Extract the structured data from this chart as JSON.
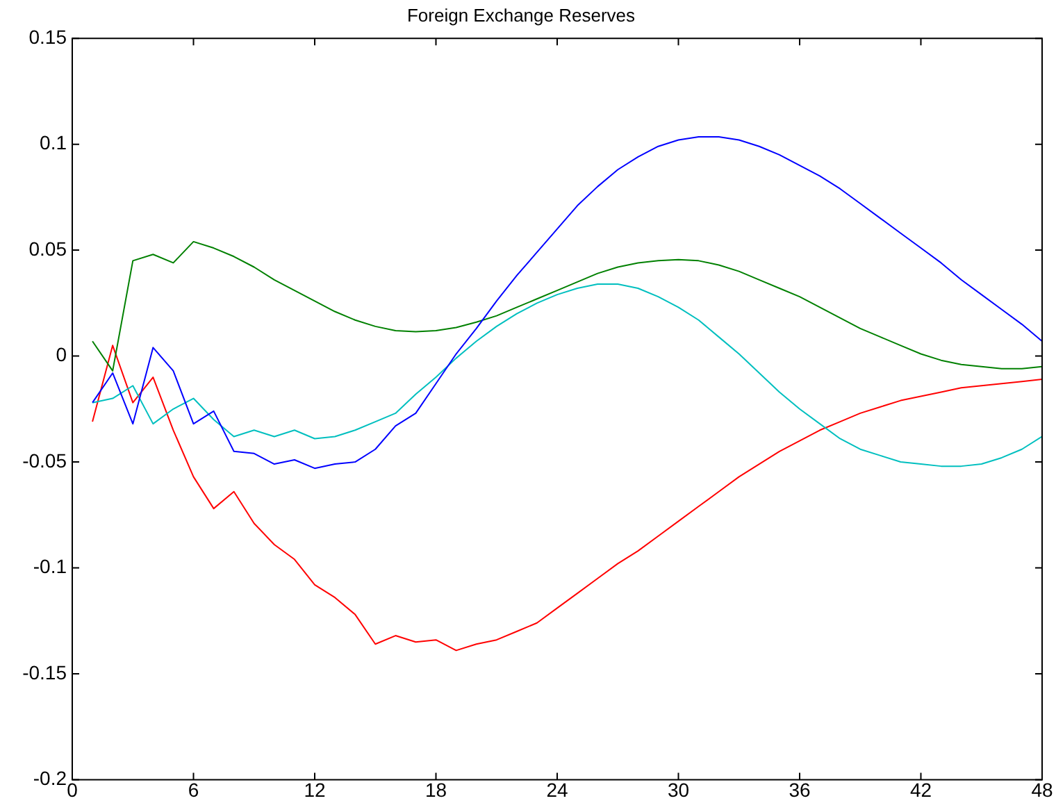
{
  "chart_data": {
    "type": "line",
    "title": "Foreign Exchange Reserves",
    "x": [
      1,
      2,
      3,
      4,
      5,
      6,
      7,
      8,
      9,
      10,
      11,
      12,
      13,
      14,
      15,
      16,
      17,
      18,
      19,
      20,
      21,
      22,
      23,
      24,
      25,
      26,
      27,
      28,
      29,
      30,
      31,
      32,
      33,
      34,
      35,
      36,
      37,
      38,
      39,
      40,
      41,
      42,
      43,
      44,
      45,
      46,
      47,
      48
    ],
    "series": [
      {
        "color": "#0000ff",
        "values": [
          -0.022,
          -0.008,
          -0.032,
          0.004,
          -0.007,
          -0.032,
          -0.026,
          -0.045,
          -0.046,
          -0.051,
          -0.049,
          -0.053,
          -0.051,
          -0.05,
          -0.044,
          -0.033,
          -0.027,
          -0.013,
          0.001,
          0.013,
          0.026,
          0.038,
          0.049,
          0.06,
          0.071,
          0.08,
          0.088,
          0.094,
          0.099,
          0.102,
          0.1035,
          0.1035,
          0.102,
          0.099,
          0.095,
          0.09,
          0.085,
          0.079,
          0.072,
          0.065,
          0.058,
          0.051,
          0.044,
          0.036,
          0.029,
          0.022,
          0.015,
          0.007
        ]
      },
      {
        "color": "#008000",
        "values": [
          0.007,
          -0.007,
          0.045,
          0.048,
          0.044,
          0.054,
          0.051,
          0.047,
          0.042,
          0.036,
          0.031,
          0.026,
          0.021,
          0.017,
          0.014,
          0.012,
          0.0115,
          0.012,
          0.0135,
          0.016,
          0.019,
          0.023,
          0.027,
          0.031,
          0.035,
          0.039,
          0.042,
          0.044,
          0.045,
          0.0455,
          0.045,
          0.043,
          0.04,
          0.036,
          0.032,
          0.028,
          0.023,
          0.018,
          0.013,
          0.009,
          0.005,
          0.001,
          -0.002,
          -0.004,
          -0.005,
          -0.006,
          -0.006,
          -0.005
        ]
      },
      {
        "color": "#00bfbf",
        "values": [
          -0.022,
          -0.02,
          -0.014,
          -0.032,
          -0.025,
          -0.02,
          -0.03,
          -0.038,
          -0.035,
          -0.038,
          -0.035,
          -0.039,
          -0.038,
          -0.035,
          -0.031,
          -0.027,
          -0.018,
          -0.01,
          -0.001,
          0.007,
          0.014,
          0.02,
          0.025,
          0.029,
          0.032,
          0.034,
          0.034,
          0.032,
          0.028,
          0.023,
          0.017,
          0.009,
          0.001,
          -0.008,
          -0.017,
          -0.025,
          -0.032,
          -0.039,
          -0.044,
          -0.047,
          -0.05,
          -0.051,
          -0.052,
          -0.052,
          -0.051,
          -0.048,
          -0.044,
          -0.038
        ]
      },
      {
        "color": "#ff0000",
        "values": [
          -0.031,
          0.005,
          -0.022,
          -0.01,
          -0.035,
          -0.057,
          -0.072,
          -0.064,
          -0.079,
          -0.089,
          -0.096,
          -0.108,
          -0.114,
          -0.122,
          -0.136,
          -0.132,
          -0.135,
          -0.134,
          -0.139,
          -0.136,
          -0.134,
          -0.13,
          -0.126,
          -0.119,
          -0.112,
          -0.105,
          -0.098,
          -0.092,
          -0.085,
          -0.078,
          -0.071,
          -0.064,
          -0.057,
          -0.051,
          -0.045,
          -0.04,
          -0.035,
          -0.031,
          -0.027,
          -0.024,
          -0.021,
          -0.019,
          -0.017,
          -0.015,
          -0.014,
          -0.013,
          -0.012,
          -0.011
        ]
      }
    ],
    "xlim": [
      0,
      48
    ],
    "xticks": [
      0,
      6,
      12,
      18,
      24,
      30,
      36,
      42,
      48
    ],
    "ylim": [
      -0.2,
      0.15
    ],
    "yticks": [
      -0.2,
      -0.15,
      -0.1,
      -0.05,
      0,
      0.05,
      0.1,
      0.15
    ],
    "grid": false,
    "legend": false,
    "marker": "none",
    "line_style": "solid"
  }
}
